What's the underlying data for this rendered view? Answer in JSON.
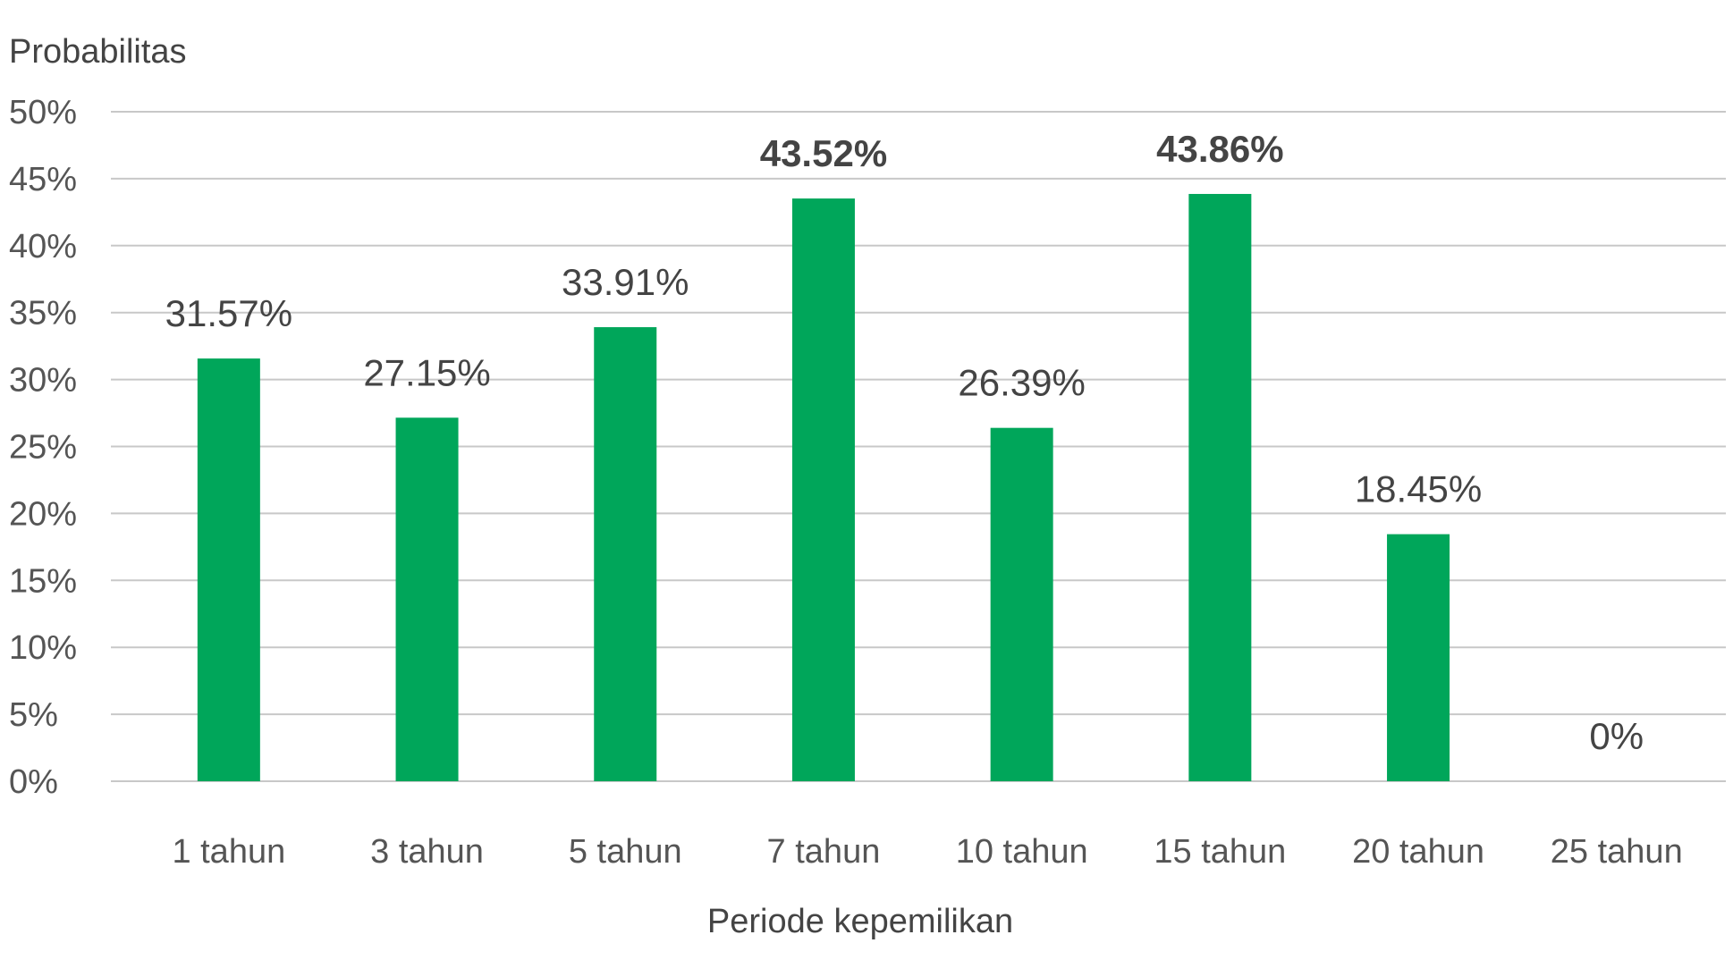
{
  "chart_data": {
    "type": "bar",
    "ylabel": "Probabilitas",
    "xlabel": "Periode kepemilikan",
    "categories": [
      "1 tahun",
      "3 tahun",
      "5 tahun",
      "7 tahun",
      "10 tahun",
      "15 tahun",
      "20 tahun",
      "25 tahun"
    ],
    "values": [
      31.57,
      27.15,
      33.91,
      43.52,
      26.39,
      43.86,
      18.45,
      0
    ],
    "data_labels": [
      "31.57%",
      "27.15%",
      "33.91%",
      "43.52%",
      "26.39%",
      "43.86%",
      "18.45%",
      "0%"
    ],
    "highlighted": [
      false,
      false,
      false,
      true,
      false,
      true,
      false,
      false
    ],
    "ylim": [
      0,
      50
    ],
    "yticks": [
      0,
      5,
      10,
      15,
      20,
      25,
      30,
      35,
      40,
      45,
      50
    ],
    "ytick_labels": [
      "0%",
      "5%",
      "10%",
      "15%",
      "20%",
      "25%",
      "30%",
      "35%",
      "40%",
      "45%",
      "50%"
    ],
    "grid": "horizontal",
    "legend": "none",
    "colors": {
      "bar": "#00a65a",
      "highlight_label": "#00a65a",
      "label": "#444444"
    }
  }
}
